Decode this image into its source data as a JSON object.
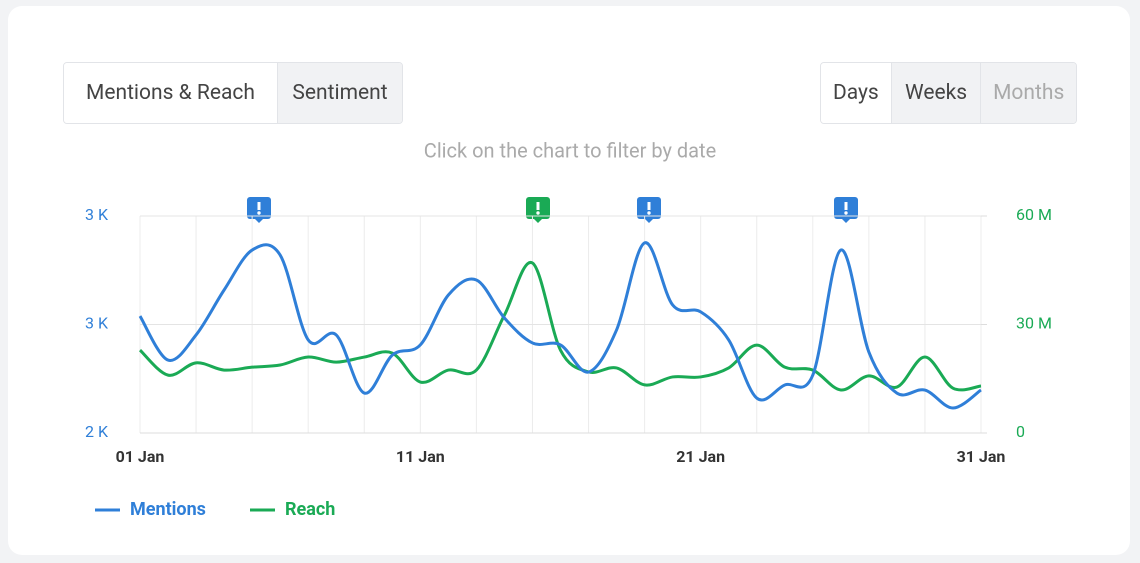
{
  "tabs": [
    "Mentions & Reach",
    "Sentiment"
  ],
  "periods": [
    "Days",
    "Weeks",
    "Months"
  ],
  "chart_data": {
    "type": "line",
    "subtitle": "Click on the chart to filter by date",
    "categories": [
      "01 Jan",
      null,
      null,
      null,
      null,
      null,
      null,
      null,
      null,
      null,
      "11 Jan",
      null,
      null,
      null,
      null,
      null,
      null,
      null,
      null,
      null,
      "21 Jan",
      null,
      null,
      null,
      null,
      null,
      null,
      null,
      null,
      null,
      "31 Jan"
    ],
    "series": [
      {
        "name": "Mentions",
        "color": "#2f7fd8",
        "axis": "y",
        "values": [
          2539,
          2336,
          2452,
          2659,
          2843,
          2820,
          2429,
          2452,
          2184,
          2359,
          2406,
          2636,
          2705,
          2530,
          2415,
          2406,
          2281,
          2475,
          2876,
          2590,
          2558,
          2429,
          2161,
          2221,
          2267,
          2843,
          2373,
          2184,
          2198,
          2115,
          2198
        ]
      },
      {
        "name": "Reach",
        "color": "#1aaa55",
        "axis": "y2",
        "values": [
          22900000,
          16000000,
          19400000,
          17400000,
          18200000,
          18800000,
          21000000,
          19600000,
          21000000,
          22100000,
          14100000,
          17400000,
          17400000,
          32600000,
          47000000,
          22900000,
          16900000,
          18000000,
          13300000,
          15500000,
          15500000,
          18000000,
          24300000,
          18200000,
          17400000,
          11900000,
          15800000,
          12700000,
          21000000,
          12400000,
          13000000
        ]
      }
    ],
    "ylim": [
      2000,
      3000
    ],
    "yticks": [
      {
        "value": 2000,
        "label": "2 K"
      },
      {
        "value": 2500,
        "label": "3 K"
      },
      {
        "value": 3000,
        "label": "3 K"
      }
    ],
    "y2lim": [
      0,
      60000000
    ],
    "y2ticks": [
      0,
      {
        "value": 30000000,
        "label": "30 M"
      },
      {
        "value": 60000000,
        "label": "60 M"
      }
    ],
    "grid": true
  }
}
